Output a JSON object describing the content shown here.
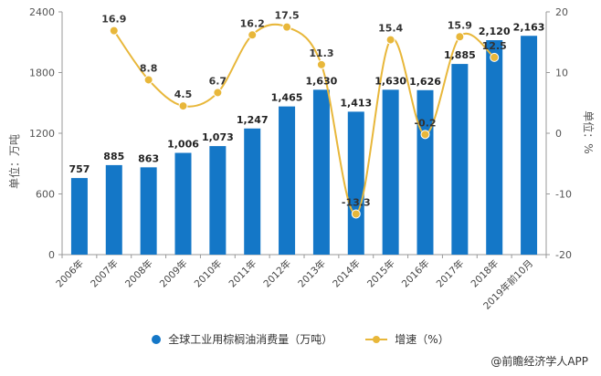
{
  "chart_data": {
    "type": "bar+line",
    "categories": [
      "2006年",
      "2007年",
      "2008年",
      "2009年",
      "2010年",
      "2011年",
      "2012年",
      "2013年",
      "2014年",
      "2015年",
      "2016年",
      "2017年",
      "2018年",
      "2019年前10月"
    ],
    "series": [
      {
        "name": "全球工业用棕榈油消费量（万吨）",
        "type": "bar",
        "axis": "left",
        "color": "#1477c7",
        "values": [
          757,
          885,
          863,
          1006,
          1073,
          1247,
          1465,
          1630,
          1413,
          1630,
          1626,
          1885,
          2120,
          2163
        ],
        "labels": [
          "757",
          "885",
          "863",
          "1,006",
          "1,073",
          "1,247",
          "1,465",
          "1,630",
          "1,413",
          "1,630",
          "1,626",
          "1,885",
          "2,120",
          "2,163"
        ]
      },
      {
        "name": "增速（%）",
        "type": "line",
        "axis": "right",
        "color": "#e8b73a",
        "values": [
          null,
          16.9,
          8.8,
          4.5,
          6.7,
          16.2,
          17.5,
          11.3,
          -13.3,
          15.4,
          -0.2,
          15.9,
          12.5,
          null
        ],
        "labels": [
          "",
          "16.9",
          "8.8",
          "4.5",
          "6.7",
          "16.2",
          "17.5",
          "11.3",
          "-13.3",
          "15.4",
          "-0.2",
          "15.9",
          "12.5",
          ""
        ]
      }
    ],
    "y_left": {
      "label": "单位：万吨",
      "min": 0,
      "max": 2400,
      "ticks": [
        0,
        600,
        1200,
        1800,
        2400
      ],
      "tick_labels": [
        "0",
        "600",
        "1200",
        "1800",
        "2400"
      ]
    },
    "y_right": {
      "label": "单位：%",
      "min": -20,
      "max": 20,
      "ticks": [
        -20,
        -10,
        0,
        10,
        20
      ],
      "tick_labels": [
        "-20",
        "-10",
        "0",
        "10",
        "20"
      ]
    }
  },
  "legend": {
    "bar_label": "全球工业用棕榈油消费量（万吨）",
    "line_label": "增速（%）"
  },
  "credit": "@前瞻经济学人APP",
  "colors": {
    "bar": "#1477c7",
    "line": "#e8b73a",
    "axis": "#999999"
  }
}
